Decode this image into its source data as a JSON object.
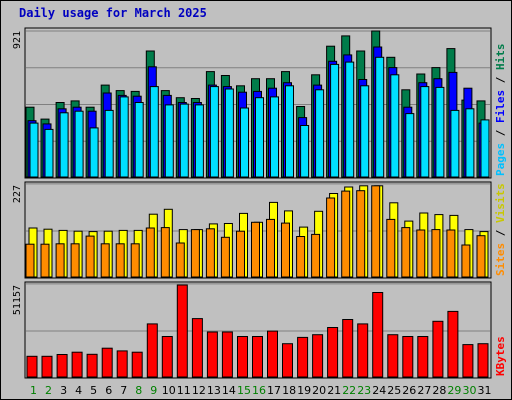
{
  "title": "Daily usage for March 2025",
  "colors": {
    "background": "#c0c0c0",
    "hits": "#007c4a",
    "files": "#0000ff",
    "pages": "#00e0ff",
    "visits": "#ffff00",
    "sites": "#ff8c00",
    "kbytes": "#ff0000",
    "weekday_label": "#000000",
    "weekend_label": "#008000"
  },
  "legend": {
    "top": [
      {
        "text": "Pages",
        "color": "#00c0ff"
      },
      {
        "text": " / ",
        "color": "#000000"
      },
      {
        "text": "Files",
        "color": "#0000ff"
      },
      {
        "text": " / ",
        "color": "#000000"
      },
      {
        "text": "Hits",
        "color": "#007c4a"
      }
    ],
    "middle": [
      {
        "text": "Sites",
        "color": "#ff8c00"
      },
      {
        "text": " / ",
        "color": "#000000"
      },
      {
        "text": "Visits",
        "color": "#c8c800"
      }
    ],
    "bottom": [
      {
        "text": "KBytes",
        "color": "#ff0000"
      }
    ]
  },
  "chart_data": {
    "type": "bar",
    "title": "Daily usage for March 2025",
    "categories": [
      "1",
      "2",
      "3",
      "4",
      "5",
      "6",
      "7",
      "8",
      "9",
      "10",
      "11",
      "12",
      "13",
      "14",
      "15",
      "16",
      "17",
      "18",
      "19",
      "20",
      "21",
      "22",
      "23",
      "24",
      "25",
      "26",
      "27",
      "28",
      "29",
      "30",
      "31"
    ],
    "weekend_days": [
      1,
      2,
      8,
      9,
      15,
      16,
      22,
      23,
      29,
      30
    ],
    "panels": [
      {
        "name": "hits-files-pages",
        "max_label": "921",
        "ymax": 921,
        "legend": "Pages / Files / Hits",
        "series": [
          {
            "name": "Hits",
            "values": [
              440,
              365,
              470,
              480,
              440,
              580,
              545,
              540,
              795,
              545,
              500,
              495,
              665,
              640,
              575,
              620,
              620,
              665,
              445,
              645,
              825,
              890,
              795,
              921,
              755,
              550,
              650,
              690,
              810,
              485,
              480
            ]
          },
          {
            "name": "Files",
            "values": [
              355,
              335,
              430,
              440,
              415,
              530,
              515,
              510,
              695,
              515,
              470,
              470,
              580,
              570,
              535,
              540,
              560,
              595,
              375,
              580,
              730,
              770,
              615,
              820,
              690,
              440,
              595,
              620,
              660,
              560,
              340
            ]
          },
          {
            "name": "Pages",
            "values": [
              340,
              300,
              405,
              415,
              310,
              420,
              505,
              470,
              570,
              455,
              460,
              455,
              570,
              555,
              435,
              500,
              505,
              575,
              325,
              550,
              710,
              725,
              575,
              755,
              645,
              400,
              570,
              565,
              420,
              430,
              360
            ]
          }
        ]
      },
      {
        "name": "visits-sites",
        "max_label": "227",
        "ymax": 227,
        "legend": "Sites / Visits",
        "series": [
          {
            "name": "Visits",
            "values": [
              121,
              118,
              115,
              113,
              112,
              113,
              115,
              115,
              155,
              167,
              117,
              117,
              131,
              132,
              157,
              135,
              184,
              163,
              123,
              162,
              206,
              222,
              225,
              225,
              183,
              138,
              158,
              154,
              152,
              117,
              112
            ]
          },
          {
            "name": "Sites",
            "values": [
              81,
              81,
              82,
              82,
              101,
              82,
              82,
              82,
              121,
              122,
              84,
              117,
              119,
              98,
              113,
              135,
              142,
              133,
              100,
              105,
              195,
              212,
              213,
              225,
              142,
              122,
              116,
              117,
              116,
              79,
              102
            ]
          }
        ]
      },
      {
        "name": "kbytes",
        "max_label": "51157",
        "ymax": 51157,
        "legend": "KBytes",
        "series": [
          {
            "name": "KBytes",
            "values": [
              11500,
              11500,
              12500,
              13800,
              12600,
              16000,
              14500,
              13800,
              29500,
              22500,
              51157,
              32500,
              25000,
              25000,
              22500,
              22500,
              25500,
              18500,
              22000,
              23500,
              27500,
              32000,
              29500,
              47000,
              23500,
              22500,
              22500,
              31000,
              36500,
              18000,
              18500
            ]
          }
        ]
      }
    ]
  }
}
